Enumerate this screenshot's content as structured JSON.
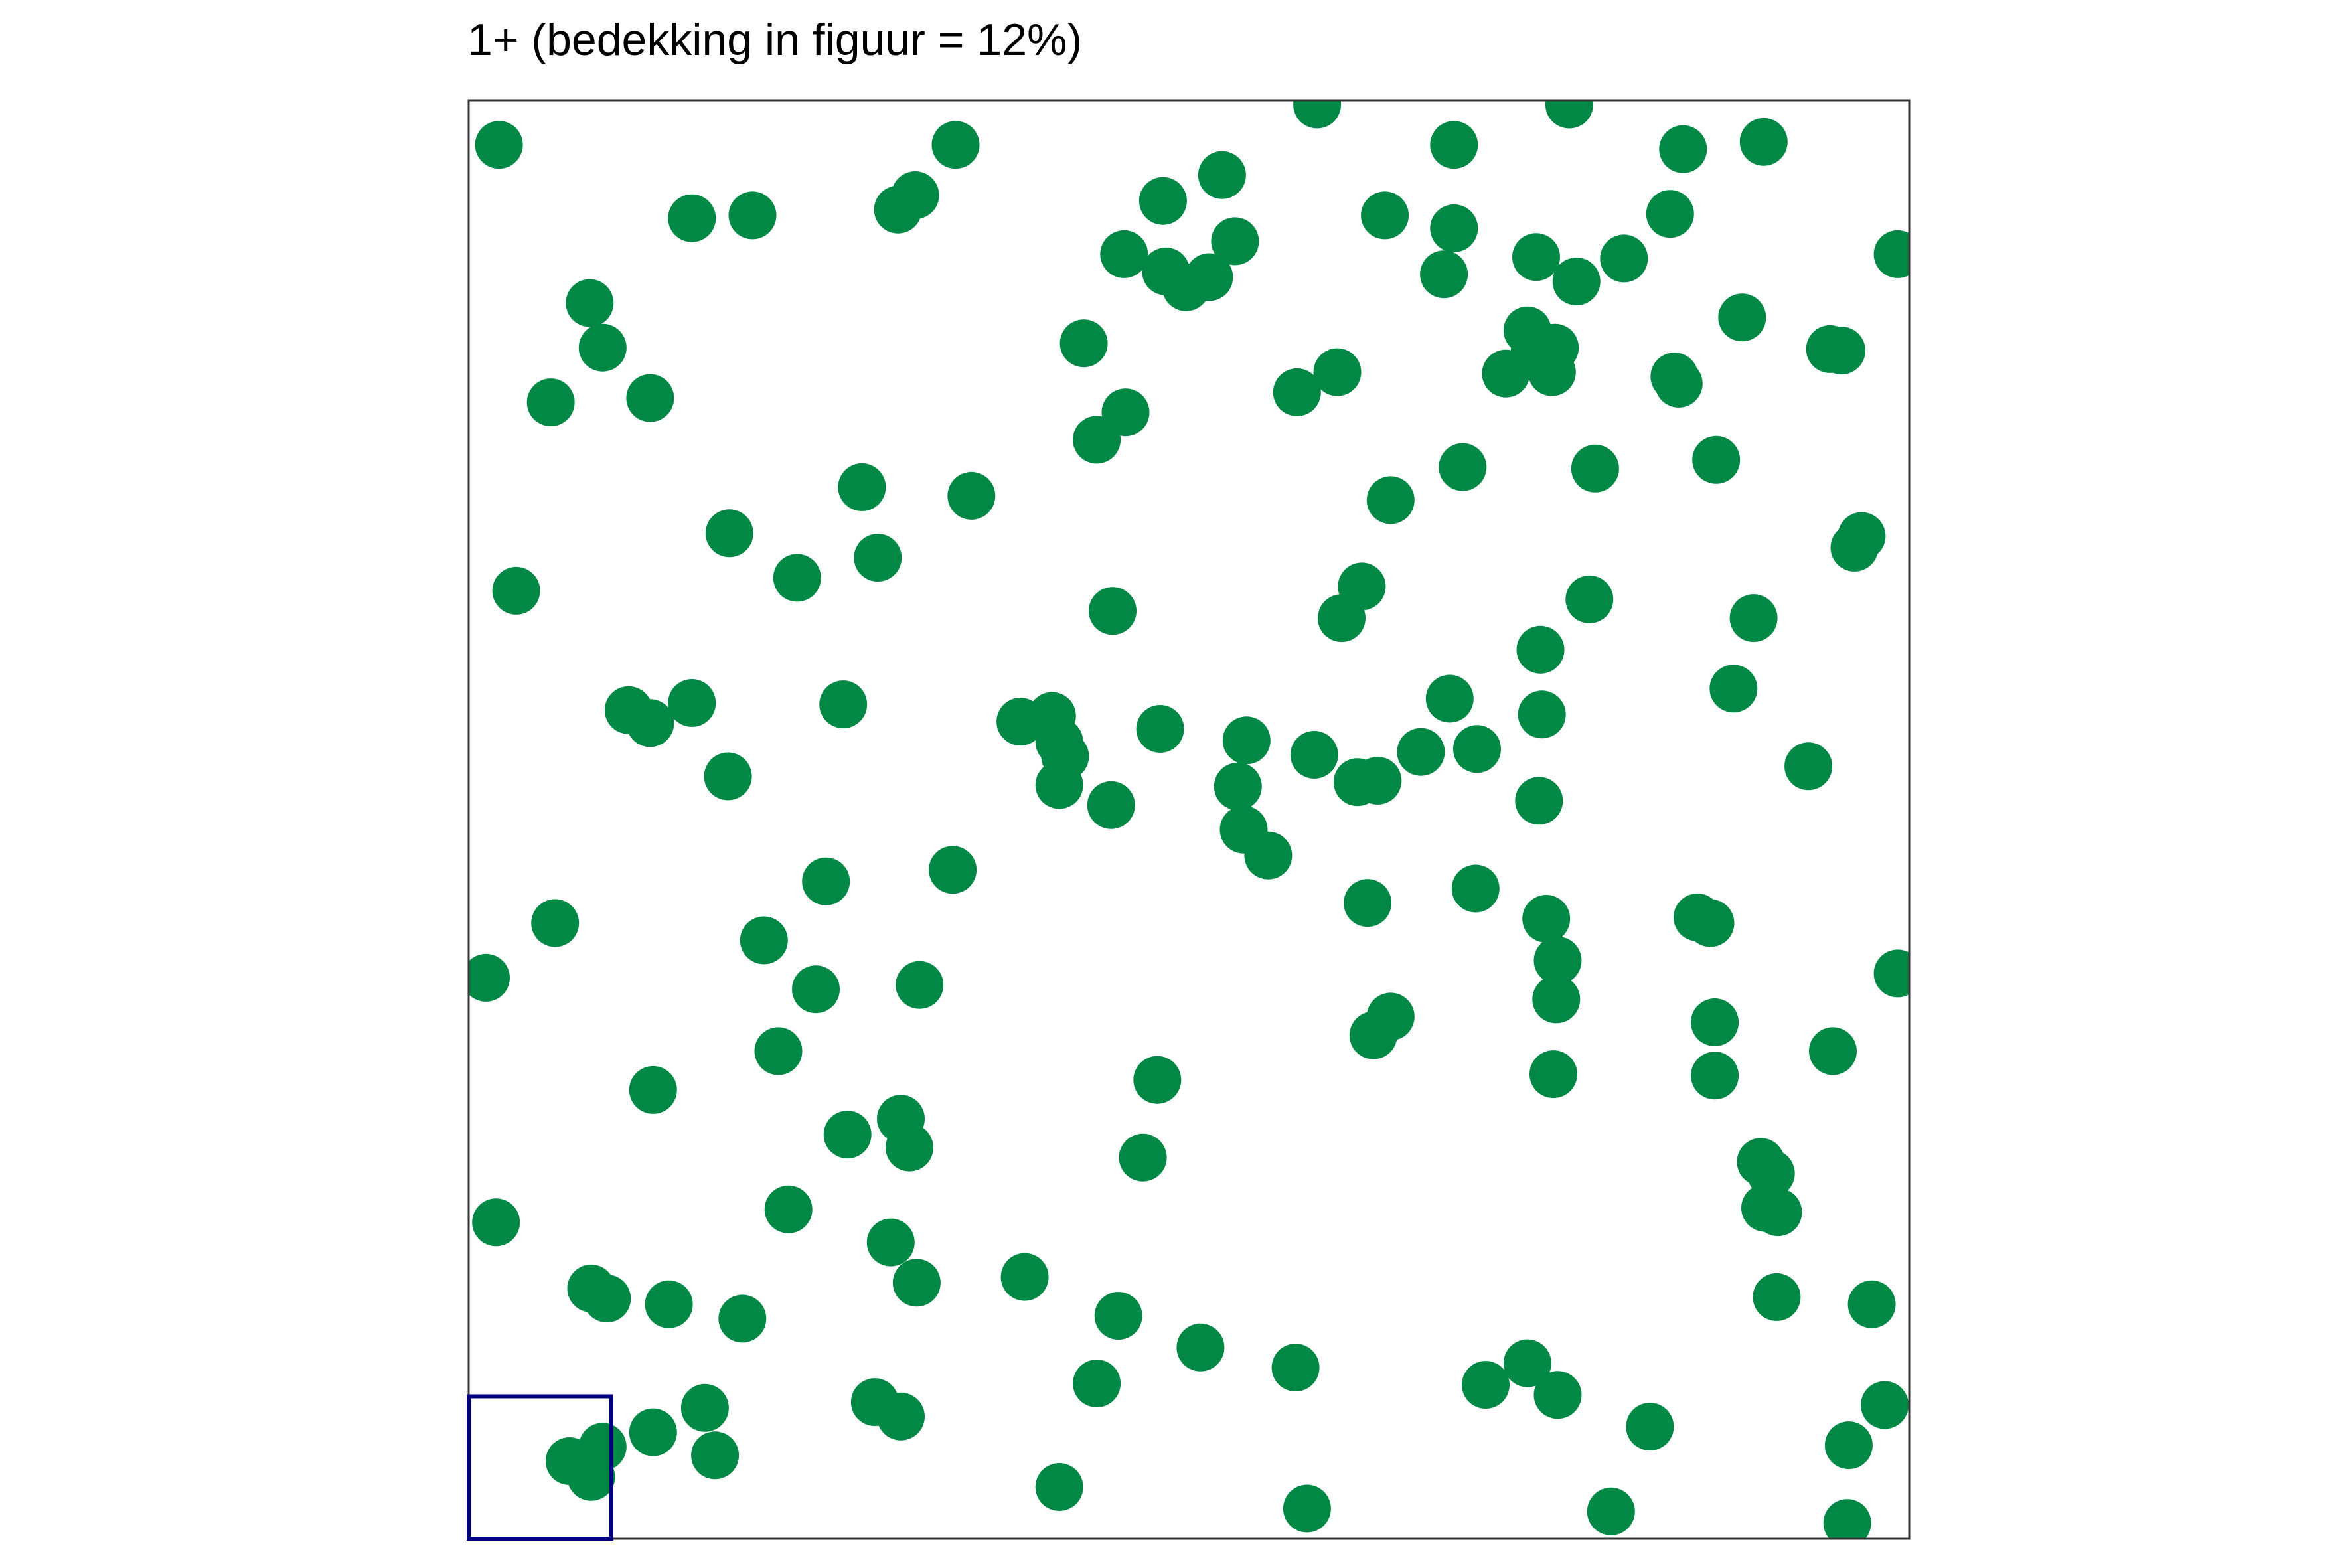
{
  "chart_data": {
    "type": "scatter",
    "title": "1+ (bedekking in figuur = 12%)",
    "xlabel": "",
    "ylabel": "",
    "xlim": [
      0,
      1
    ],
    "ylim": [
      0,
      1
    ],
    "grid": false,
    "colors": {
      "points": "#008844",
      "frame": "#333333",
      "quadrat": "#00007f"
    },
    "quadrat": {
      "x0": 0,
      "y0": 0,
      "x1": 0.099,
      "y1": 0.099
    },
    "points": [
      [
        0.021,
        0.969
      ],
      [
        0.155,
        0.918
      ],
      [
        0.197,
        0.92
      ],
      [
        0.298,
        0.924
      ],
      [
        0.31,
        0.934
      ],
      [
        0.338,
        0.969
      ],
      [
        0.482,
        0.93
      ],
      [
        0.523,
        0.948
      ],
      [
        0.589,
        0.997
      ],
      [
        0.684,
        0.969
      ],
      [
        0.764,
        0.997
      ],
      [
        0.843,
        0.966
      ],
      [
        0.899,
        0.971
      ],
      [
        0.084,
        0.859
      ],
      [
        0.093,
        0.828
      ],
      [
        0.057,
        0.79
      ],
      [
        0.126,
        0.793
      ],
      [
        0.455,
        0.893
      ],
      [
        0.484,
        0.881
      ],
      [
        0.532,
        0.902
      ],
      [
        0.514,
        0.877
      ],
      [
        0.498,
        0.87
      ],
      [
        0.636,
        0.92
      ],
      [
        0.684,
        0.911
      ],
      [
        0.677,
        0.879
      ],
      [
        0.741,
        0.891
      ],
      [
        0.769,
        0.874
      ],
      [
        0.802,
        0.89
      ],
      [
        0.834,
        0.921
      ],
      [
        0.884,
        0.849
      ],
      [
        0.992,
        0.893
      ],
      [
        0.735,
        0.84
      ],
      [
        0.74,
        0.826
      ],
      [
        0.754,
        0.828
      ],
      [
        0.945,
        0.827
      ],
      [
        0.953,
        0.826
      ],
      [
        0.427,
        0.831
      ],
      [
        0.456,
        0.783
      ],
      [
        0.436,
        0.764
      ],
      [
        0.575,
        0.797
      ],
      [
        0.603,
        0.811
      ],
      [
        0.72,
        0.81
      ],
      [
        0.752,
        0.811
      ],
      [
        0.837,
        0.808
      ],
      [
        0.84,
        0.803
      ],
      [
        0.866,
        0.75
      ],
      [
        0.69,
        0.745
      ],
      [
        0.782,
        0.744
      ],
      [
        0.64,
        0.722
      ],
      [
        0.181,
        0.699
      ],
      [
        0.273,
        0.731
      ],
      [
        0.284,
        0.682
      ],
      [
        0.228,
        0.668
      ],
      [
        0.349,
        0.725
      ],
      [
        0.033,
        0.659
      ],
      [
        0.447,
        0.645
      ],
      [
        0.62,
        0.662
      ],
      [
        0.606,
        0.64
      ],
      [
        0.778,
        0.653
      ],
      [
        0.892,
        0.64
      ],
      [
        0.962,
        0.689
      ],
      [
        0.967,
        0.697
      ],
      [
        0.744,
        0.618
      ],
      [
        0.745,
        0.573
      ],
      [
        0.681,
        0.584
      ],
      [
        0.878,
        0.591
      ],
      [
        0.111,
        0.576
      ],
      [
        0.126,
        0.567
      ],
      [
        0.155,
        0.581
      ],
      [
        0.26,
        0.58
      ],
      [
        0.18,
        0.53
      ],
      [
        0.383,
        0.568
      ],
      [
        0.405,
        0.572
      ],
      [
        0.41,
        0.554
      ],
      [
        0.414,
        0.544
      ],
      [
        0.41,
        0.524
      ],
      [
        0.48,
        0.563
      ],
      [
        0.446,
        0.51
      ],
      [
        0.54,
        0.555
      ],
      [
        0.587,
        0.545
      ],
      [
        0.617,
        0.526
      ],
      [
        0.631,
        0.527
      ],
      [
        0.661,
        0.547
      ],
      [
        0.7,
        0.549
      ],
      [
        0.534,
        0.523
      ],
      [
        0.538,
        0.493
      ],
      [
        0.555,
        0.475
      ],
      [
        0.743,
        0.513
      ],
      [
        0.93,
        0.537
      ],
      [
        0.248,
        0.457
      ],
      [
        0.336,
        0.465
      ],
      [
        0.06,
        0.428
      ],
      [
        0.205,
        0.416
      ],
      [
        0.012,
        0.39
      ],
      [
        0.241,
        0.382
      ],
      [
        0.313,
        0.385
      ],
      [
        0.624,
        0.442
      ],
      [
        0.64,
        0.363
      ],
      [
        0.628,
        0.35
      ],
      [
        0.699,
        0.452
      ],
      [
        0.748,
        0.431
      ],
      [
        0.756,
        0.402
      ],
      [
        0.755,
        0.375
      ],
      [
        0.853,
        0.432
      ],
      [
        0.862,
        0.428
      ],
      [
        0.992,
        0.393
      ],
      [
        0.865,
        0.359
      ],
      [
        0.865,
        0.322
      ],
      [
        0.753,
        0.323
      ],
      [
        0.947,
        0.339
      ],
      [
        0.215,
        0.339
      ],
      [
        0.128,
        0.312
      ],
      [
        0.478,
        0.319
      ],
      [
        0.3,
        0.292
      ],
      [
        0.263,
        0.281
      ],
      [
        0.306,
        0.272
      ],
      [
        0.468,
        0.265
      ],
      [
        0.897,
        0.262
      ],
      [
        0.904,
        0.254
      ],
      [
        0.9,
        0.23
      ],
      [
        0.909,
        0.227
      ],
      [
        0.019,
        0.22
      ],
      [
        0.222,
        0.229
      ],
      [
        0.293,
        0.206
      ],
      [
        0.311,
        0.178
      ],
      [
        0.085,
        0.174
      ],
      [
        0.096,
        0.167
      ],
      [
        0.139,
        0.163
      ],
      [
        0.19,
        0.153
      ],
      [
        0.386,
        0.182
      ],
      [
        0.451,
        0.155
      ],
      [
        0.908,
        0.168
      ],
      [
        0.974,
        0.163
      ],
      [
        0.508,
        0.133
      ],
      [
        0.574,
        0.119
      ],
      [
        0.735,
        0.122
      ],
      [
        0.706,
        0.107
      ],
      [
        0.756,
        0.1
      ],
      [
        0.436,
        0.108
      ],
      [
        0.282,
        0.095
      ],
      [
        0.3,
        0.085
      ],
      [
        0.164,
        0.091
      ],
      [
        0.128,
        0.074
      ],
      [
        0.171,
        0.058
      ],
      [
        0.07,
        0.054
      ],
      [
        0.085,
        0.043
      ],
      [
        0.093,
        0.064
      ],
      [
        0.983,
        0.093
      ],
      [
        0.82,
        0.078
      ],
      [
        0.958,
        0.065
      ],
      [
        0.41,
        0.036
      ],
      [
        0.582,
        0.021
      ],
      [
        0.793,
        0.019
      ],
      [
        0.957,
        0.011
      ]
    ]
  }
}
